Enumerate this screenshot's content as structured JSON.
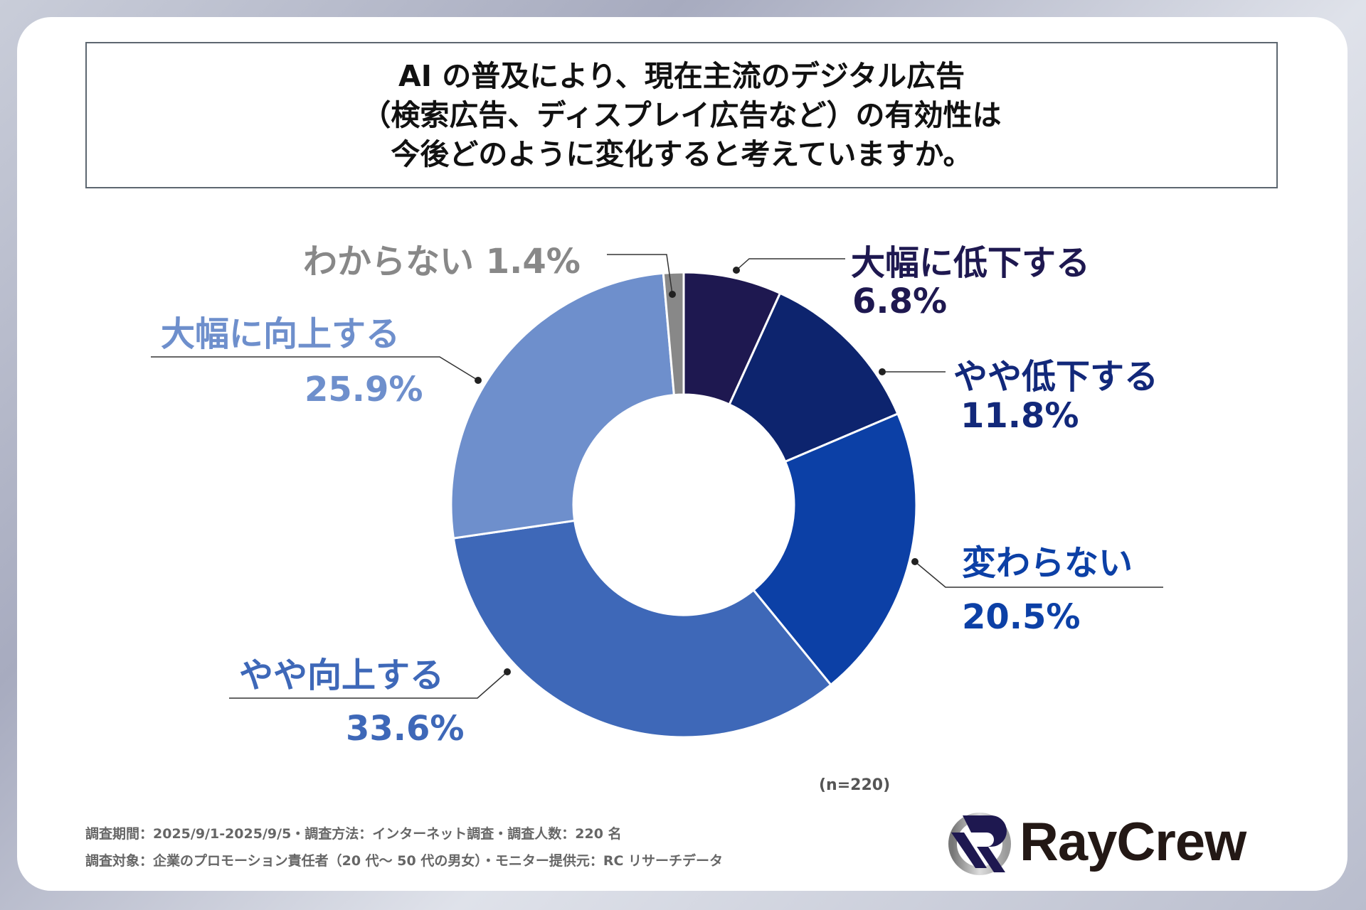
{
  "title_lines": [
    "AI の普及により、現在主流のデジタル広告",
    "（検索広告、ディスプレイ広告など）の有効性は",
    "今後どのように変化すると考えていますか。"
  ],
  "chart_data": {
    "type": "pie",
    "donut": true,
    "categories": [
      "大幅に低下する",
      "やや低下する",
      "変わらない",
      "やや向上する",
      "大幅に向上する",
      "わからない"
    ],
    "values": [
      6.8,
      11.8,
      20.5,
      33.6,
      25.9,
      1.4
    ],
    "labels": [
      "6.8%",
      "11.8%",
      "20.5%",
      "33.6%",
      "25.9%",
      "1.4%"
    ],
    "colors": [
      "#1e1850",
      "#0d246e",
      "#0c40a6",
      "#3e68b8",
      "#6e8fcc",
      "#888888"
    ],
    "label_colors": [
      "#1e1850",
      "#12287a",
      "#0c40a6",
      "#3e68b8",
      "#6e8fcc",
      "#888888"
    ],
    "start": "top",
    "direction": "clockwise"
  },
  "unknown_label": "わからない 1.4%",
  "sample_size": "(n=220)",
  "footer": [
    "調査期間：2025/9/1-2025/9/5・調査方法：インターネット調査・調査人数：220 名",
    "調査対象：企業のプロモーション責任者（20 代～ 50 代の男女）・モニター提供元：RC リサーチデータ"
  ],
  "logo": "RayCrew"
}
